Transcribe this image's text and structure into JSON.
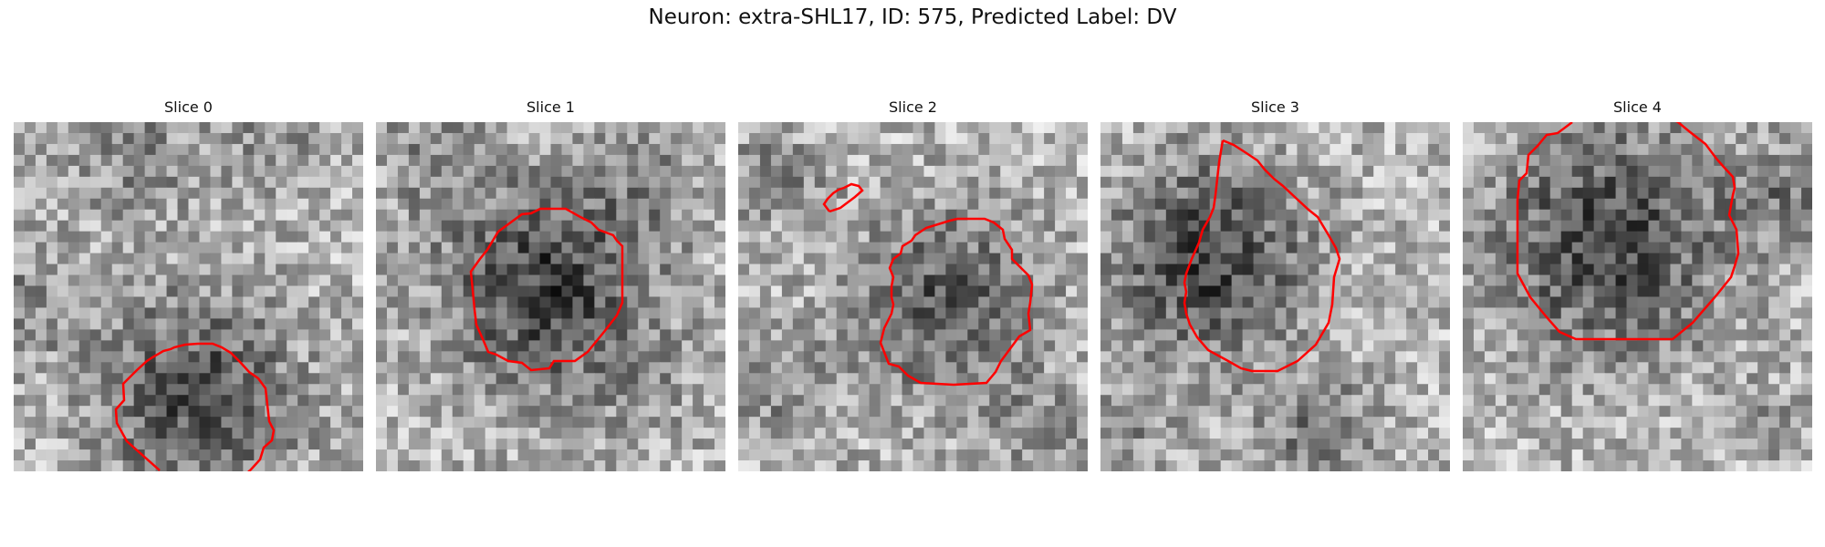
{
  "figure": {
    "title": "Neuron: extra-SHL17, ID: 575, Predicted Label: DV",
    "outline_color": "#ff0000",
    "colormap": "gray"
  },
  "slices": [
    {
      "title": "Slice 0"
    },
    {
      "title": "Slice 1"
    },
    {
      "title": "Slice 2"
    },
    {
      "title": "Slice 3"
    },
    {
      "title": "Slice 4"
    }
  ]
}
